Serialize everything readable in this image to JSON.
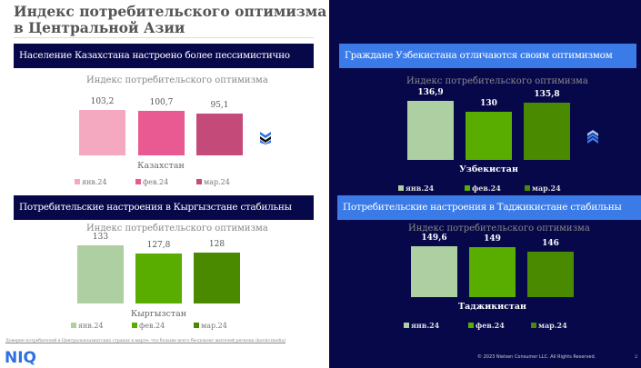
{
  "title": "Индекс потребительского оптимизма в Центральной Азии",
  "legend": [
    "янв.24",
    "фев.24",
    "мар.24"
  ],
  "subtitle": "Индекс потребительского оптимизма",
  "panels": [
    {
      "header": "Население Казахстана настроено более пессимистично",
      "country": "Казахстан",
      "values": [
        103.2,
        100.7,
        95.1
      ],
      "labels": [
        "103,2",
        "100,7",
        "95,1"
      ],
      "colors": [
        "#f4a9c0",
        "#ea5a92",
        "#c44a7a"
      ],
      "trend": "double-chevron-down-icon"
    },
    {
      "header": "Потребительские настроения в Кыргызстане стабильны",
      "country": "Кыргызстан",
      "values": [
        133,
        127.8,
        128
      ],
      "labels": [
        "133",
        "127,8",
        "128"
      ],
      "colors": [
        "#aecfa2",
        "#59ad00",
        "#4a8a00"
      ]
    },
    {
      "header": "Граждане Узбекистана отличаются своим оптимизмом",
      "country": "Узбекистан",
      "values": [
        136.9,
        130,
        135.8
      ],
      "labels": [
        "136,9",
        "130",
        "135,8"
      ],
      "colors": [
        "#aecfa2",
        "#59ad00",
        "#4a8a00"
      ],
      "trend": "double-chevron-up-icon"
    },
    {
      "header": "Потребительские настроения в Таджикистане стабильны",
      "country": "Таджикистан",
      "values": [
        149.6,
        149,
        146
      ],
      "labels": [
        "149,6",
        "149",
        "146"
      ],
      "colors": [
        "#aecfa2",
        "#59ad00",
        "#4a8a00"
      ]
    }
  ],
  "footnote": "Доверие потребителей в Центральноазиатских странах в марте: что больше всего беспокоит жителей региона (kursiv.media)",
  "logo": "NIQ",
  "copyright": "© 2023 Nielsen Consumer LLC. All Rights Reserved.",
  "page": "2"
}
